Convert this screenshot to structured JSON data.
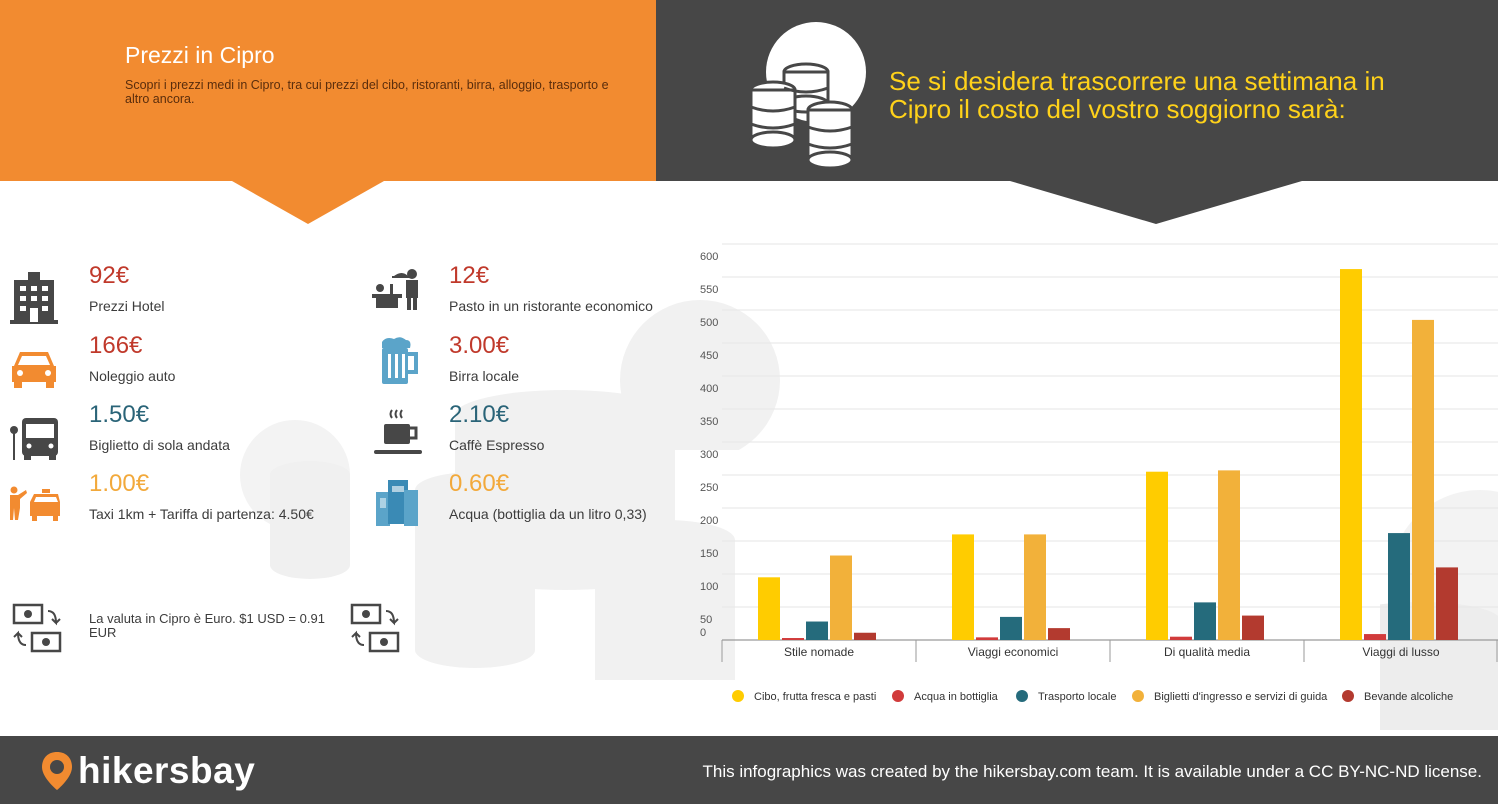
{
  "header": {
    "title": "Prezzi in Cipro",
    "subtitle": "Scopri i prezzi medi in Cipro, tra cui prezzi del cibo, ristoranti, birra, alloggio, trasporto e altro ancora.",
    "headline": "Se si desidera trascorrere una settimana in Cipro il costo del vostro soggiorno sarà:"
  },
  "prices": [
    {
      "value": "92€",
      "label": "Prezzi Hotel",
      "icon": "hotel-icon",
      "color": "#c0392b"
    },
    {
      "value": "166€",
      "label": "Noleggio auto",
      "icon": "car-icon",
      "color": "#c0392b"
    },
    {
      "value": "1.50€",
      "label": "Biglietto di sola andata",
      "icon": "bus-icon",
      "color": "#2a6478"
    },
    {
      "value": "1.00€",
      "label": "Taxi 1km + Tariffa di partenza: 4.50€",
      "icon": "taxi-icon",
      "color": "#f2a93b"
    },
    {
      "value": "12€",
      "label": "Pasto in un ristorante economico",
      "icon": "restaurant-icon",
      "color": "#c0392b"
    },
    {
      "value": "3.00€",
      "label": "Birra locale",
      "icon": "beer-icon",
      "color": "#c0392b"
    },
    {
      "value": "2.10€",
      "label": "Caffè Espresso",
      "icon": "coffee-icon",
      "color": "#2a6478"
    },
    {
      "value": "0.60€",
      "label": "Acqua (bottiglia da un litro 0,33)",
      "icon": "water-icon",
      "color": "#f2a93b"
    }
  ],
  "currency_note": "La valuta in Cipro è Euro. $1 USD = 0.91 EUR",
  "footer": {
    "logo": "hikersbay",
    "credit": "This infographics was created by the hikersbay.com team. It is available under a CC BY-NC-ND license."
  },
  "chart_data": {
    "type": "bar",
    "categories": [
      "Stile nomade",
      "Viaggi economici",
      "Di qualità media",
      "Viaggi di lusso"
    ],
    "series": [
      {
        "name": "Cibo, frutta fresca e pasti",
        "color": "#ffcc00",
        "values": [
          95,
          160,
          255,
          562
        ]
      },
      {
        "name": "Acqua in bottiglia",
        "color": "#d13b3b",
        "values": [
          3,
          4,
          5,
          9
        ]
      },
      {
        "name": "Trasporto locale",
        "color": "#256b7c",
        "values": [
          28,
          35,
          57,
          162
        ]
      },
      {
        "name": "Biglietti d'ingresso e servizi di guida",
        "color": "#f2b13a",
        "values": [
          128,
          160,
          257,
          485
        ]
      },
      {
        "name": "Bevande alcoliche",
        "color": "#b33a2f",
        "values": [
          11,
          18,
          37,
          110
        ]
      }
    ],
    "y_ticks": [
      0,
      50,
      100,
      150,
      200,
      250,
      300,
      350,
      400,
      450,
      500,
      550,
      600
    ],
    "ylim": [
      0,
      600
    ],
    "legend_position": "bottom",
    "grid": true
  }
}
